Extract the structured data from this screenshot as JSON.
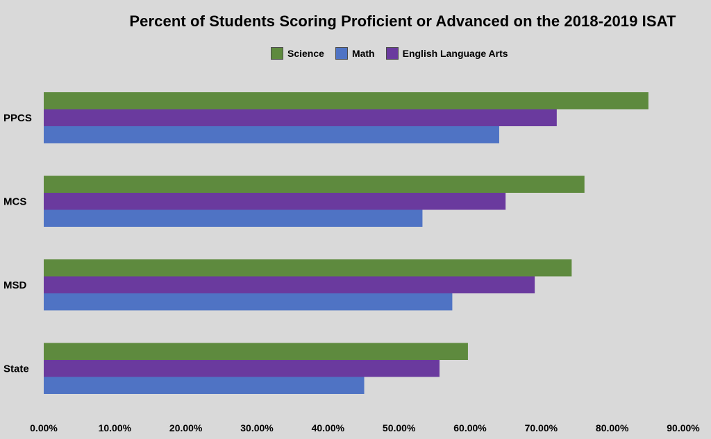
{
  "chart_data": {
    "type": "bar",
    "orientation": "horizontal",
    "title": "Percent of Students Scoring Proficient or Advanced on the 2018-2019 ISAT",
    "categories": [
      "PPCS",
      "MCS",
      "MSD",
      "State"
    ],
    "series": [
      {
        "name": "Science",
        "color": "#5e8a3e",
        "values": [
          0.851,
          0.761,
          0.743,
          0.597
        ]
      },
      {
        "name": "English Language Arts",
        "color": "#6a3a9e",
        "values": [
          0.722,
          0.65,
          0.691,
          0.557
        ]
      },
      {
        "name": "Math",
        "color": "#4f73c4",
        "values": [
          0.641,
          0.533,
          0.575,
          0.451
        ]
      }
    ],
    "legend_order": [
      "Science",
      "Math",
      "English Language Arts"
    ],
    "xlim": [
      0,
      0.9
    ],
    "xticks": [
      0,
      0.1,
      0.2,
      0.3,
      0.4,
      0.5,
      0.6,
      0.7,
      0.8,
      0.9
    ],
    "xtick_labels": [
      "0.00%",
      "10.00%",
      "20.00%",
      "30.00%",
      "40.00%",
      "50.00%",
      "60.00%",
      "70.00%",
      "80.00%",
      "90.00%"
    ],
    "grid": false,
    "legend_position": "top"
  }
}
